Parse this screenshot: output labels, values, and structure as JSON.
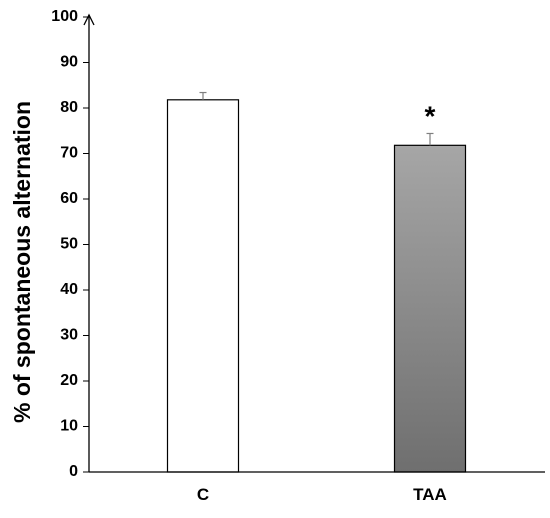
{
  "chart_data": {
    "type": "bar",
    "categories": [
      "C",
      "TAA"
    ],
    "values": [
      81.8,
      71.8
    ],
    "error_bars": [
      1.6,
      2.6
    ],
    "annotations": [
      {
        "category": "TAA",
        "text": "*"
      }
    ],
    "title": "",
    "xlabel": "",
    "ylabel": "% of spontaneous alternation",
    "ylim": [
      0,
      100
    ],
    "yticks": [
      0,
      10,
      20,
      30,
      40,
      50,
      60,
      70,
      80,
      90,
      100
    ],
    "grid": false,
    "legend": "none",
    "bar_fills": [
      "#ffffff",
      "gradient-gray"
    ],
    "colors": {
      "axis": "#000000",
      "bar_outline": "#000000",
      "gray_top": "#a6a6a6",
      "gray_bottom": "#6f6f6f",
      "error_bar": "#7f7f7f"
    }
  }
}
